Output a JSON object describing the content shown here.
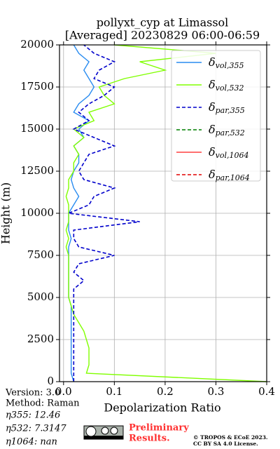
{
  "chart_data": {
    "type": "line",
    "title": "pollyxt_cyp at Limassol",
    "subtitle": "[Averaged] 20230829 06:00-06:59",
    "xlabel": "Depolarization Ratio",
    "ylabel": "Height (m)",
    "heights": [
      0,
      500,
      1000,
      1500,
      2000,
      2500,
      3000,
      3500,
      4000,
      4500,
      5000,
      5500,
      6000,
      6500,
      7000,
      7500,
      8000,
      8500,
      9000,
      9500,
      10000,
      10500,
      11000,
      11500,
      12000,
      12500,
      13000,
      13500,
      14000,
      14500,
      15000,
      15500,
      16000,
      16500,
      17000,
      17500,
      18000,
      18500,
      19000,
      19500,
      20000
    ],
    "series": [
      {
        "name": "δvol,355",
        "color": "#2a8cf0",
        "dashed": false,
        "values": [
          0.02,
          0.015,
          0.015,
          0.015,
          0.015,
          0.015,
          0.015,
          0.015,
          0.015,
          0.015,
          0.01,
          0.01,
          0.01,
          0.01,
          0.01,
          0.01,
          0.01,
          0.015,
          0.01,
          0.01,
          0.01,
          0.02,
          0.03,
          0.02,
          0.015,
          0.02,
          0.03,
          0.03,
          0.02,
          0.04,
          0.03,
          0.05,
          0.02,
          0.03,
          0.05,
          0.06,
          0.05,
          0.04,
          0.05,
          0.03,
          0.02
        ]
      },
      {
        "name": "δvol,532",
        "color": "#80ff00",
        "dashed": false,
        "values": [
          0.4,
          0.045,
          0.05,
          0.05,
          0.05,
          0.045,
          0.04,
          0.03,
          0.02,
          0.015,
          0.01,
          0.01,
          0.01,
          0.01,
          0.01,
          0.01,
          0.005,
          0.01,
          0.005,
          0.01,
          0.01,
          0.01,
          0.005,
          0.01,
          0.01,
          0.02,
          0.02,
          0.03,
          0.02,
          0.04,
          0.02,
          0.06,
          0.05,
          0.1,
          0.08,
          0.07,
          0.12,
          0.2,
          0.15,
          0.3,
          0.1
        ]
      },
      {
        "name": "δpar,355",
        "color": "#0000cc",
        "dashed": true,
        "values": [
          0.02,
          0.02,
          0.02,
          0.02,
          0.02,
          0.02,
          0.02,
          0.02,
          0.02,
          0.02,
          0.02,
          0.02,
          0.04,
          0.02,
          0.03,
          0.1,
          0.03,
          0.02,
          0.02,
          0.15,
          0.01,
          0.05,
          0.06,
          0.1,
          0.04,
          0.03,
          0.04,
          0.05,
          0.1,
          0.06,
          0.02,
          0.05,
          0.03,
          0.05,
          0.08,
          0.1,
          0.06,
          0.07,
          0.1,
          0.06,
          0.04
        ]
      },
      {
        "name": "δpar,532",
        "color": "#008000",
        "dashed": true,
        "values": [
          null,
          null,
          null,
          null,
          null,
          null,
          null,
          null,
          null,
          null,
          null,
          null,
          null,
          null,
          null,
          null,
          null,
          null,
          null,
          null,
          null,
          null,
          null,
          null,
          null,
          null,
          null,
          null,
          null,
          null,
          null,
          null,
          null,
          null,
          null,
          null,
          null,
          null,
          null,
          null,
          null
        ]
      },
      {
        "name": "δvol,1064",
        "color": "#ff4040",
        "dashed": false,
        "values": [
          null,
          null,
          null,
          null,
          null,
          null,
          null,
          null,
          null,
          null,
          null,
          null,
          null,
          null,
          null,
          null,
          null,
          null,
          null,
          null,
          null,
          null,
          null,
          null,
          null,
          null,
          null,
          null,
          null,
          null,
          null,
          null,
          null,
          null,
          null,
          null,
          null,
          null,
          null,
          null,
          null
        ]
      },
      {
        "name": "δpar,1064",
        "color": "#e00000",
        "dashed": true,
        "values": [
          null,
          null,
          null,
          null,
          null,
          null,
          null,
          null,
          null,
          null,
          null,
          null,
          null,
          null,
          null,
          null,
          null,
          null,
          null,
          null,
          null,
          null,
          null,
          null,
          null,
          null,
          null,
          null,
          null,
          null,
          null,
          null,
          null,
          null,
          null,
          null,
          null,
          null,
          null,
          null,
          null
        ]
      }
    ],
    "xlim": [
      -0.008,
      0.4
    ],
    "xticks": [
      {
        "value": 0,
        "label": "0.0"
      },
      0.1,
      0.2,
      0.3,
      0.4
    ],
    "ylim": [
      0,
      20000
    ],
    "yticks": [
      0,
      2500,
      5000,
      7500,
      10000,
      12500,
      15000,
      17500,
      20000
    ],
    "grid": true,
    "legend": "upper right"
  },
  "info": {
    "version": "Version: 3.0",
    "method": "Method: Raman",
    "eta355": "η355:  12.46",
    "eta532": "η532: 7.3147",
    "eta1064": "η1064:    nan"
  },
  "footer": {
    "preliminary": [
      "Preliminary",
      "Results."
    ],
    "copyright": [
      "© TROPOS & ECoE 2023.",
      "CC BY SA 4.0 License."
    ]
  }
}
